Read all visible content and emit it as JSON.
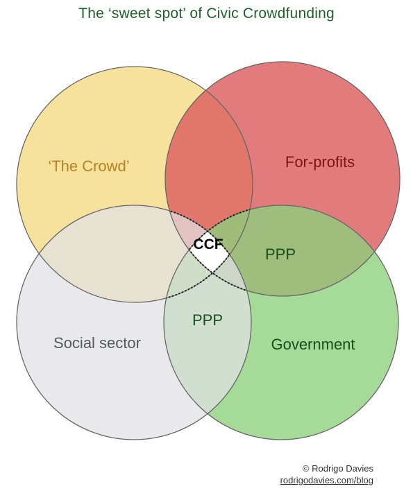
{
  "title": "The ‘sweet spot’ of Civic Crowdfunding",
  "colors": {
    "title": "#1f5f2a",
    "crowd_fill": "#f5dc8c",
    "crowd_text": "#b58420",
    "forprofit_fill": "#dc5f5f",
    "forprofit_text": "#7a1515",
    "social_fill": "#e1e1e4",
    "social_text": "#55585c",
    "government_fill": "#8ccf7c",
    "government_text": "#1a4d1a",
    "ppp_text": "#1a4d1a",
    "ccf_fill": "#ffffff",
    "ccf_text": "#000000",
    "circle_stroke": "#666666"
  },
  "sets": {
    "crowd": "‘The Crowd’",
    "forprofits": "For-profits",
    "social": "Social sector",
    "government": "Government"
  },
  "intersections": {
    "ppp_forprofit_government": "PPP",
    "ppp_social_government": "PPP",
    "ccf_center": "CCF"
  },
  "credit": {
    "copyright": "© Rodrigo Davies",
    "url": "rodrigodavies.com/blog"
  }
}
